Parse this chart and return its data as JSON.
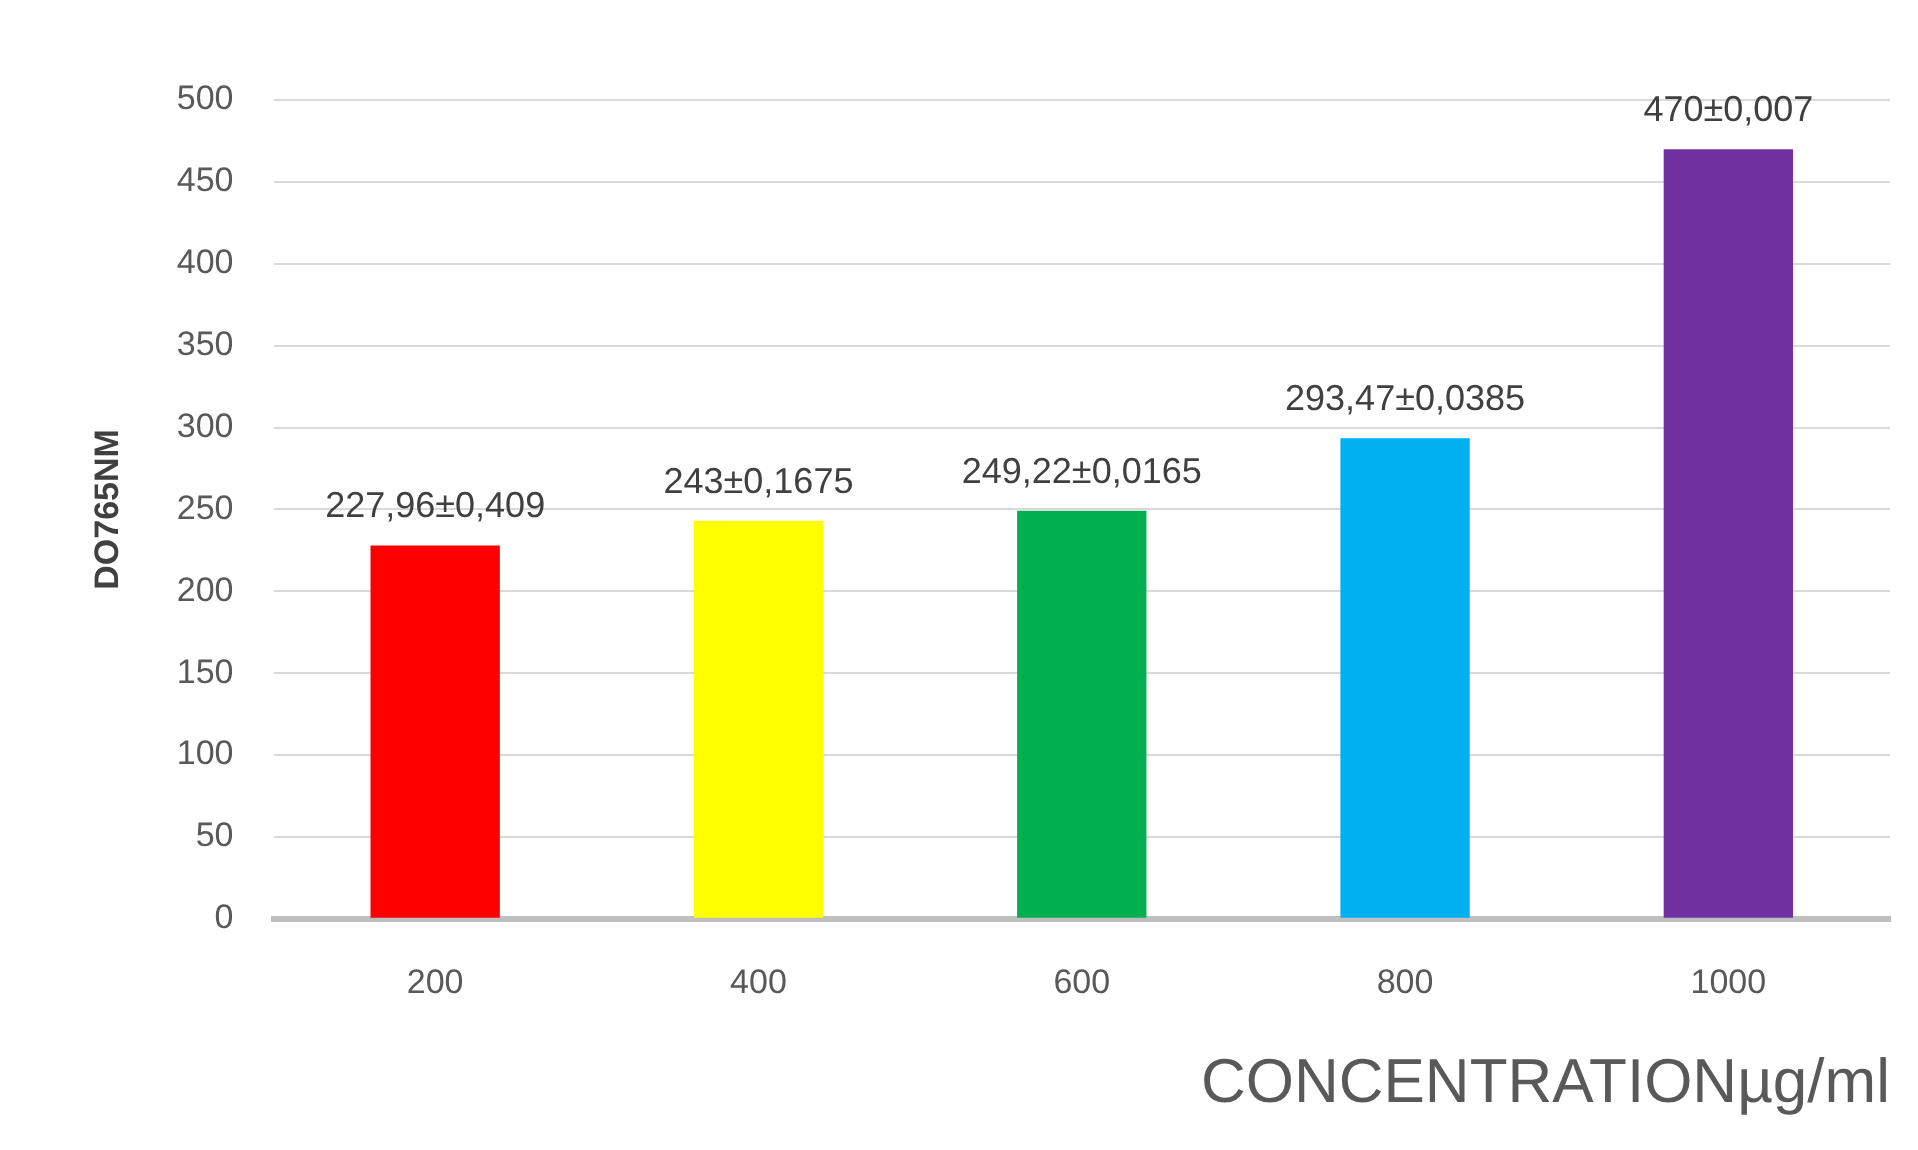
{
  "chart_data": {
    "type": "bar",
    "xlabel": "CONCENTRATIONµg/ml",
    "ylabel": "DO765NM",
    "categories": [
      "200",
      "400",
      "600",
      "800",
      "1000"
    ],
    "values": [
      227.96,
      243,
      249.22,
      293.47,
      470
    ],
    "colors": [
      "#ff0000",
      "#ffff00",
      "#00b050",
      "#00b0f0",
      "#7030a0"
    ],
    "value_labels": [
      "227,96±0,409",
      "243±0,1675",
      "249,22±0,0165",
      "293,47±0,0385",
      "470±0,007"
    ],
    "ylim": [
      0,
      500
    ],
    "yticks": [
      0,
      50,
      100,
      150,
      200,
      250,
      300,
      350,
      400,
      450,
      500
    ],
    "grid": "y",
    "legend": false
  }
}
